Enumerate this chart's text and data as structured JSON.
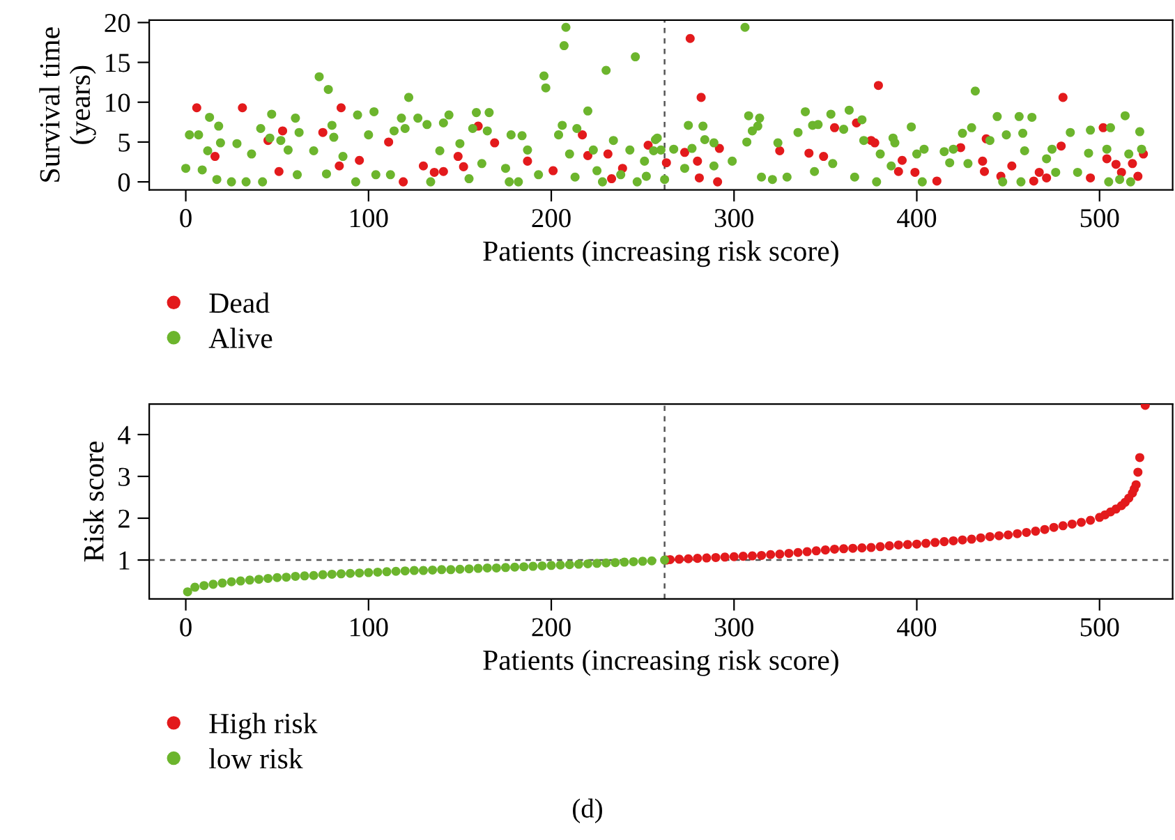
{
  "chart_data": [
    {
      "type": "scatter",
      "ylabel": "Survival time\n(years)",
      "xlabel": "Patients (increasing risk score)",
      "xlim": [
        -20,
        540
      ],
      "xticks": [
        0,
        100,
        200,
        300,
        400,
        500
      ],
      "ylim": [
        -1,
        20.3
      ],
      "yticks": [
        0,
        5,
        10,
        15,
        20
      ],
      "grid": false,
      "legend": "bottom left",
      "marker": "circle",
      "ref_lines": [
        {
          "axis": "x",
          "value": 262,
          "color": "#555555",
          "line_style": "dashed"
        }
      ],
      "series": [
        {
          "name": "Dead",
          "color": "#e31a1c",
          "x": [
            6,
            31,
            16,
            53,
            45,
            51,
            85,
            75,
            84,
            95,
            111,
            119,
            130,
            136,
            141,
            149,
            152,
            160,
            169,
            187,
            201,
            217,
            220,
            231,
            233,
            239,
            253,
            263,
            276,
            273,
            280,
            282,
            281,
            292,
            291,
            325,
            341,
            349,
            355,
            367,
            375,
            377,
            379,
            392,
            390,
            399,
            411,
            424,
            436,
            438,
            437,
            446,
            452,
            464,
            471,
            467,
            479,
            480,
            502,
            495,
            504,
            509,
            512,
            518,
            521,
            524
          ],
          "values": [
            9.3,
            9.3,
            3.2,
            6.4,
            5.2,
            1.3,
            9.3,
            6.2,
            2.0,
            2.7,
            5.0,
            0,
            2.0,
            1.2,
            1.3,
            3.2,
            1.9,
            7.0,
            4.9,
            2.6,
            1.4,
            5.9,
            3.3,
            3.5,
            0.4,
            1.7,
            4.6,
            2.4,
            18.0,
            3.7,
            2.6,
            10.6,
            0.5,
            4.2,
            0,
            3.9,
            3.6,
            3.2,
            6.8,
            7.4,
            5.2,
            4.9,
            12.1,
            2.7,
            1.3,
            1.2,
            0.1,
            4.3,
            2.6,
            5.4,
            1.3,
            0.7,
            2.0,
            0.1,
            0.5,
            1.2,
            4.5,
            10.6,
            6.8,
            0.5,
            2.9,
            2.2,
            1.2,
            2.3,
            0.7,
            3.5
          ]
        },
        {
          "name": "Alive",
          "color": "#6cb52d",
          "x": [
            0,
            2,
            7,
            13,
            18,
            19,
            12,
            9,
            17,
            25,
            28,
            33,
            36,
            41,
            42,
            47,
            46,
            52,
            56,
            60,
            62,
            61,
            70,
            73,
            78,
            77,
            80,
            81,
            86,
            94,
            93,
            100,
            103,
            104,
            112,
            114,
            118,
            120,
            122,
            127,
            132,
            134,
            141,
            139,
            144,
            150,
            155,
            157,
            159,
            162,
            165,
            166,
            175,
            178,
            177,
            184,
            182,
            187,
            193,
            196,
            197,
            204,
            206,
            207,
            208,
            210,
            214,
            213,
            220,
            223,
            225,
            230,
            228,
            234,
            238,
            243,
            246,
            247,
            251,
            257,
            260,
            262,
            252,
            258,
            256,
            267,
            273,
            275,
            277,
            283,
            284,
            289,
            289,
            299,
            306,
            307,
            308,
            310,
            314,
            313,
            315,
            324,
            321,
            329,
            335,
            339,
            343,
            346,
            344,
            353,
            354,
            360,
            363,
            370,
            366,
            371,
            380,
            378,
            387,
            388,
            386,
            397,
            400,
            404,
            403,
            415,
            418,
            420,
            425,
            430,
            432,
            428,
            440,
            444,
            449,
            447,
            456,
            458,
            459,
            463,
            457,
            471,
            474,
            476,
            484,
            488,
            494,
            495,
            504,
            506,
            505,
            514,
            516,
            522,
            523,
            511,
            517
          ],
          "values": [
            1.7,
            5.9,
            5.9,
            8.1,
            7.0,
            4.9,
            3.9,
            1.5,
            0.3,
            0,
            4.8,
            0,
            3.5,
            6.7,
            0,
            8.5,
            5.5,
            5.2,
            4.0,
            8.0,
            6.2,
            0.9,
            3.9,
            13.2,
            11.6,
            1.0,
            7.1,
            5.6,
            3.2,
            8.4,
            0,
            5.9,
            8.8,
            0.9,
            0.9,
            6.4,
            8.0,
            6.7,
            10.6,
            8.0,
            7.2,
            0,
            7.4,
            3.9,
            8.4,
            4.8,
            0.4,
            6.7,
            8.7,
            2.3,
            6.4,
            8.7,
            1.7,
            5.9,
            0,
            5.8,
            0,
            4.0,
            0.9,
            13.3,
            11.8,
            5.9,
            7.1,
            17.1,
            19.4,
            3.5,
            6.7,
            0.6,
            8.9,
            4.0,
            1.4,
            14.0,
            0,
            5.2,
            0.9,
            4.0,
            15.7,
            0,
            2.6,
            5.3,
            4.0,
            0.3,
            0.7,
            5.5,
            3.9,
            4.1,
            1.7,
            7.1,
            4.2,
            7.0,
            5.3,
            4.9,
            2.0,
            2.6,
            19.4,
            5.0,
            8.3,
            6.4,
            8.0,
            7.0,
            0.6,
            4.9,
            0.3,
            0.6,
            6.2,
            8.8,
            7.1,
            7.2,
            1.3,
            8.5,
            2.3,
            6.6,
            9.0,
            7.8,
            0.6,
            5.2,
            3.5,
            0,
            5.5,
            4.9,
            2.0,
            6.9,
            3.5,
            4.1,
            0,
            3.8,
            2.4,
            4.1,
            6.1,
            6.8,
            11.4,
            2.3,
            5.2,
            8.2,
            5.9,
            0,
            8.2,
            6.1,
            3.9,
            8.1,
            0,
            2.9,
            4.1,
            1.2,
            6.2,
            1.2,
            3.6,
            6.5,
            4.1,
            6.8,
            0,
            8.3,
            3.5,
            6.3,
            4.1,
            0.3,
            0
          ]
        }
      ]
    },
    {
      "type": "scatter",
      "ylabel": "Risk score",
      "xlabel": "Patients (increasing risk score)",
      "xlim": [
        -20,
        540
      ],
      "xticks": [
        0,
        100,
        200,
        300,
        400,
        500
      ],
      "ylim": [
        0.07,
        4.73
      ],
      "yticks": [
        1,
        2,
        3,
        4
      ],
      "grid": false,
      "legend": "bottom left",
      "marker": "circle",
      "annotations": [
        "(d)"
      ],
      "ref_lines": [
        {
          "axis": "x",
          "value": 262,
          "color": "#555555",
          "line_style": "dashed"
        },
        {
          "axis": "y",
          "value": 1,
          "color": "#555555",
          "line_style": "dashed"
        }
      ],
      "series": [
        {
          "name": "High risk",
          "color": "#e31a1c",
          "x": [
            263,
            265,
            270,
            275,
            280,
            285,
            290,
            295,
            300,
            305,
            310,
            315,
            320,
            325,
            330,
            335,
            340,
            345,
            350,
            355,
            360,
            365,
            370,
            375,
            380,
            385,
            390,
            395,
            400,
            405,
            410,
            415,
            420,
            425,
            430,
            435,
            440,
            445,
            450,
            455,
            460,
            465,
            470,
            475,
            480,
            485,
            490,
            495,
            500,
            503,
            506,
            509,
            512,
            514,
            516,
            518,
            519,
            520,
            521,
            522,
            525
          ],
          "values": [
            1.0,
            1.01,
            1.02,
            1.03,
            1.04,
            1.05,
            1.06,
            1.07,
            1.08,
            1.09,
            1.1,
            1.11,
            1.13,
            1.14,
            1.16,
            1.18,
            1.2,
            1.22,
            1.24,
            1.26,
            1.27,
            1.28,
            1.29,
            1.3,
            1.32,
            1.34,
            1.36,
            1.37,
            1.38,
            1.4,
            1.42,
            1.44,
            1.46,
            1.48,
            1.5,
            1.53,
            1.56,
            1.58,
            1.6,
            1.63,
            1.66,
            1.69,
            1.73,
            1.78,
            1.82,
            1.86,
            1.9,
            1.95,
            2.02,
            2.08,
            2.15,
            2.22,
            2.3,
            2.38,
            2.48,
            2.6,
            2.7,
            2.8,
            3.1,
            3.45,
            4.7
          ]
        },
        {
          "name": "low risk",
          "color": "#6cb52d",
          "x": [
            1,
            5,
            10,
            15,
            20,
            25,
            30,
            35,
            40,
            45,
            50,
            55,
            60,
            65,
            70,
            75,
            80,
            85,
            90,
            95,
            100,
            105,
            110,
            115,
            120,
            125,
            130,
            135,
            140,
            145,
            150,
            155,
            160,
            165,
            170,
            175,
            180,
            185,
            190,
            195,
            200,
            205,
            210,
            215,
            220,
            225,
            230,
            235,
            240,
            245,
            250,
            255,
            262
          ],
          "values": [
            0.24,
            0.35,
            0.39,
            0.42,
            0.45,
            0.48,
            0.5,
            0.52,
            0.54,
            0.56,
            0.58,
            0.59,
            0.61,
            0.62,
            0.63,
            0.65,
            0.66,
            0.67,
            0.68,
            0.69,
            0.7,
            0.71,
            0.72,
            0.73,
            0.74,
            0.75,
            0.75,
            0.76,
            0.77,
            0.77,
            0.78,
            0.79,
            0.8,
            0.81,
            0.81,
            0.82,
            0.83,
            0.84,
            0.85,
            0.86,
            0.87,
            0.88,
            0.89,
            0.9,
            0.91,
            0.92,
            0.93,
            0.94,
            0.95,
            0.96,
            0.97,
            0.98,
            1.0
          ]
        }
      ]
    }
  ]
}
